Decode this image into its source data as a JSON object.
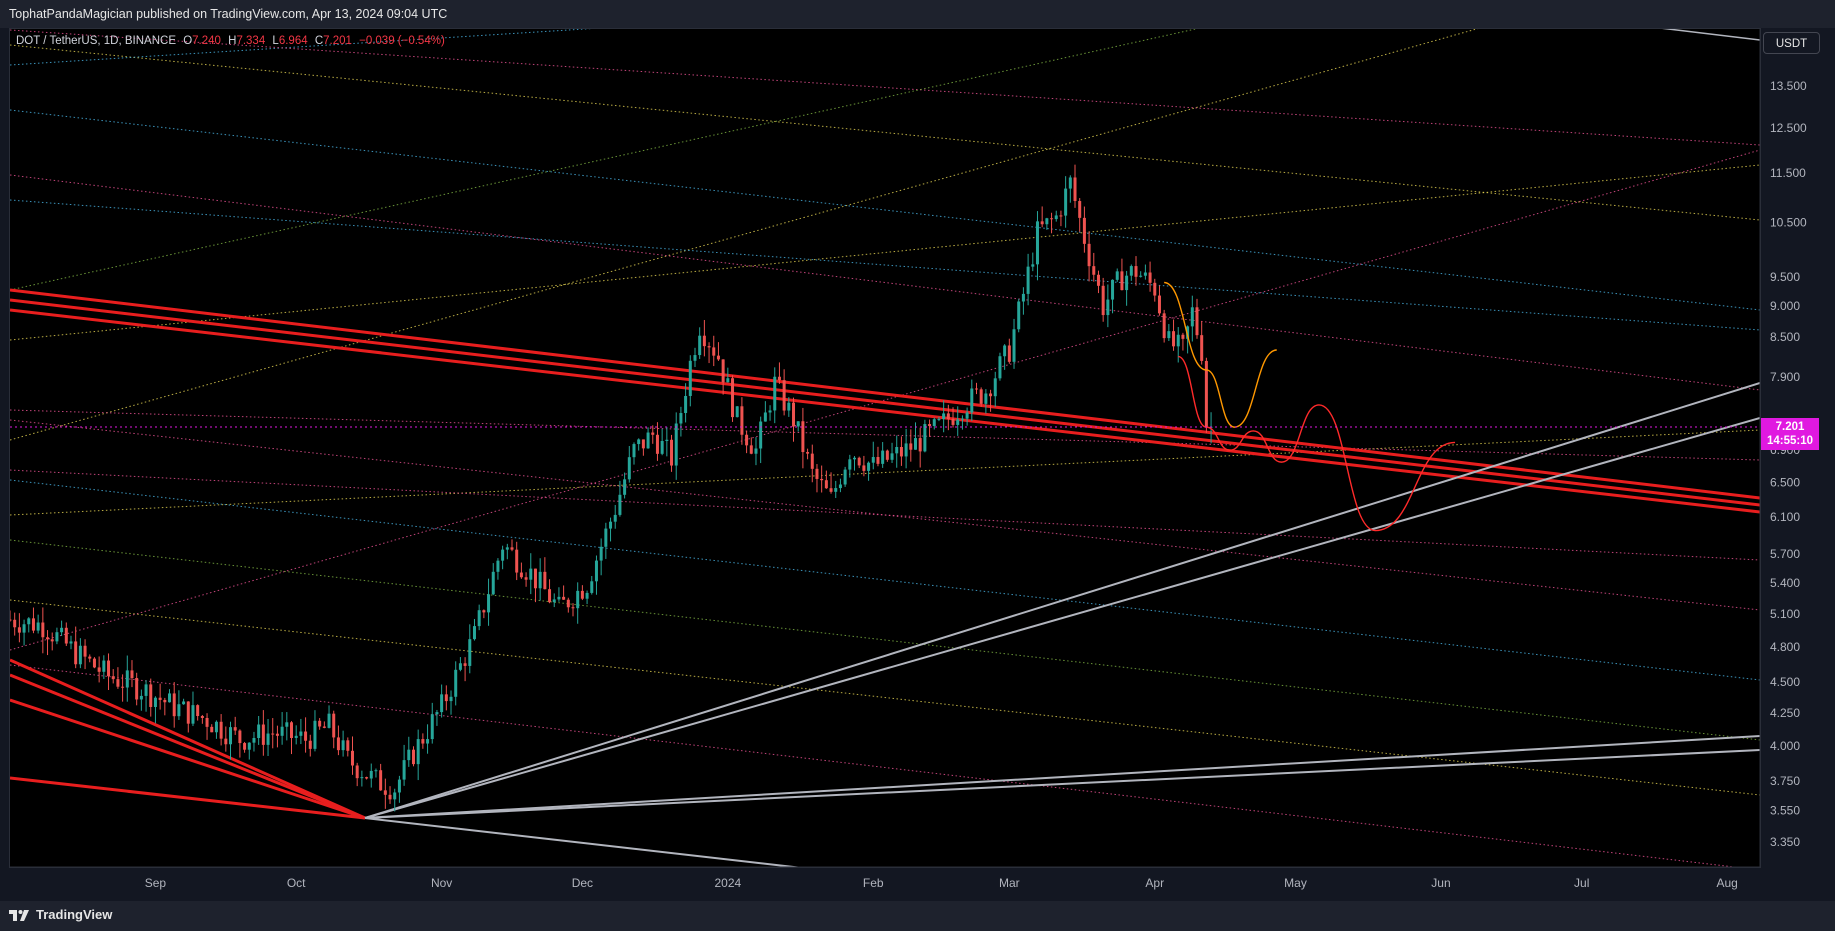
{
  "header": {
    "published": "TophatPandaMagician published on TradingView.com, Apr 13, 2024 09:04 UTC"
  },
  "legend": {
    "symbol": "DOT / TetherUS, 1D, BINANCE",
    "open_label": "O",
    "open": "7.240",
    "high_label": "H",
    "high": "7.334",
    "low_label": "L",
    "low": "6.964",
    "close_label": "C",
    "close": "7.201",
    "change": "−0.039 (−0.54%)"
  },
  "currency_button": "USDT",
  "last_price": {
    "value": "7.201",
    "countdown": "14:55:10",
    "color": "#e019e0"
  },
  "footer": {
    "brand": "TradingView"
  },
  "colors": {
    "up": "#26a69a",
    "down": "#ef5350",
    "background": "#000000",
    "accent_trend": "#e81e1e"
  },
  "chart_data": {
    "type": "candlestick",
    "title": "DOT / TetherUS, 1D, BINANCE",
    "y_scale": "log",
    "ylim": [
      3.2,
      15.0
    ],
    "xlim": [
      "2023-08-01",
      "2024-08-08"
    ],
    "y_ticks": [
      13.5,
      12.5,
      11.5,
      10.5,
      9.5,
      9.0,
      8.5,
      7.9,
      7.2,
      6.9,
      6.5,
      6.1,
      5.7,
      5.4,
      5.1,
      4.8,
      4.5,
      4.25,
      4.0,
      3.75,
      3.55,
      3.35
    ],
    "y_tick_labels": [
      "13.500",
      "12.500",
      "11.500",
      "10.500",
      "9.500",
      "9.000",
      "8.500",
      "7.900",
      "7.200",
      "6.900",
      "6.500",
      "6.100",
      "5.700",
      "5.400",
      "5.100",
      "4.800",
      "4.500",
      "4.250",
      "4.000",
      "3.750",
      "3.550",
      "3.350"
    ],
    "x_ticks": [
      {
        "date": "2023-09-01",
        "label": "Sep"
      },
      {
        "date": "2023-10-01",
        "label": "Oct"
      },
      {
        "date": "2023-11-01",
        "label": "Nov"
      },
      {
        "date": "2023-12-01",
        "label": "Dec"
      },
      {
        "date": "2024-01-01",
        "label": "2024"
      },
      {
        "date": "2024-02-01",
        "label": "Feb"
      },
      {
        "date": "2024-03-01",
        "label": "Mar"
      },
      {
        "date": "2024-04-01",
        "label": "Apr"
      },
      {
        "date": "2024-05-01",
        "label": "May"
      },
      {
        "date": "2024-06-01",
        "label": "Jun"
      },
      {
        "date": "2024-07-01",
        "label": "Jul"
      },
      {
        "date": "2024-08-01",
        "label": "Aug"
      }
    ],
    "price_keypoints": [
      [
        "2023-08-01",
        5.05
      ],
      [
        "2023-08-08",
        5.0
      ],
      [
        "2023-08-15",
        4.75
      ],
      [
        "2023-08-22",
        4.55
      ],
      [
        "2023-08-29",
        4.45
      ],
      [
        "2023-09-05",
        4.3
      ],
      [
        "2023-09-12",
        4.2
      ],
      [
        "2023-09-19",
        4.05
      ],
      [
        "2023-09-26",
        4.1
      ],
      [
        "2023-10-03",
        4.05
      ],
      [
        "2023-10-08",
        4.15
      ],
      [
        "2023-10-12",
        3.9
      ],
      [
        "2023-10-18",
        3.75
      ],
      [
        "2023-10-22",
        3.7
      ],
      [
        "2023-10-26",
        3.95
      ],
      [
        "2023-11-01",
        4.3
      ],
      [
        "2023-11-08",
        4.9
      ],
      [
        "2023-11-14",
        5.8
      ],
      [
        "2023-11-20",
        5.5
      ],
      [
        "2023-11-26",
        5.15
      ],
      [
        "2023-12-02",
        5.4
      ],
      [
        "2023-12-08",
        6.2
      ],
      [
        "2023-12-12",
        6.9
      ],
      [
        "2023-12-16",
        7.1
      ],
      [
        "2023-12-20",
        6.8
      ],
      [
        "2023-12-24",
        8.1
      ],
      [
        "2023-12-26",
        8.7
      ],
      [
        "2023-12-30",
        8.2
      ],
      [
        "2024-01-03",
        7.3
      ],
      [
        "2024-01-07",
        6.9
      ],
      [
        "2024-01-11",
        7.8
      ],
      [
        "2024-01-15",
        7.3
      ],
      [
        "2024-01-19",
        6.6
      ],
      [
        "2024-01-23",
        6.3
      ],
      [
        "2024-01-27",
        6.9
      ],
      [
        "2024-02-01",
        6.7
      ],
      [
        "2024-02-08",
        6.9
      ],
      [
        "2024-02-15",
        7.2
      ],
      [
        "2024-02-20",
        7.5
      ],
      [
        "2024-02-25",
        7.7
      ],
      [
        "2024-03-01",
        8.3
      ],
      [
        "2024-03-04",
        9.2
      ],
      [
        "2024-03-07",
        10.3
      ],
      [
        "2024-03-11",
        10.6
      ],
      [
        "2024-03-14",
        11.3
      ],
      [
        "2024-03-17",
        10.2
      ],
      [
        "2024-03-21",
        9.0
      ],
      [
        "2024-03-25",
        9.5
      ],
      [
        "2024-03-28",
        9.6
      ],
      [
        "2024-04-01",
        9.3
      ],
      [
        "2024-04-04",
        8.4
      ],
      [
        "2024-04-07",
        8.3
      ],
      [
        "2024-04-09",
        8.9
      ],
      [
        "2024-04-11",
        8.3
      ],
      [
        "2024-04-12",
        7.25
      ],
      [
        "2024-04-13",
        7.2
      ]
    ],
    "annotations": [
      {
        "type": "projection",
        "color": "#ff9800",
        "points": [
          [
            "2024-04-03",
            9.4
          ],
          [
            "2024-04-12",
            8.0
          ],
          [
            "2024-04-18",
            7.2
          ],
          [
            "2024-04-27",
            8.3
          ]
        ]
      },
      {
        "type": "projection",
        "color": "#ff2a2a",
        "points": [
          [
            "2024-04-06",
            8.2
          ],
          [
            "2024-04-12",
            7.2
          ],
          [
            "2024-04-17",
            6.9
          ],
          [
            "2024-04-22",
            7.15
          ],
          [
            "2024-04-28",
            6.75
          ],
          [
            "2024-05-06",
            7.5
          ],
          [
            "2024-05-18",
            5.95
          ],
          [
            "2024-06-04",
            7.0
          ]
        ]
      }
    ]
  }
}
